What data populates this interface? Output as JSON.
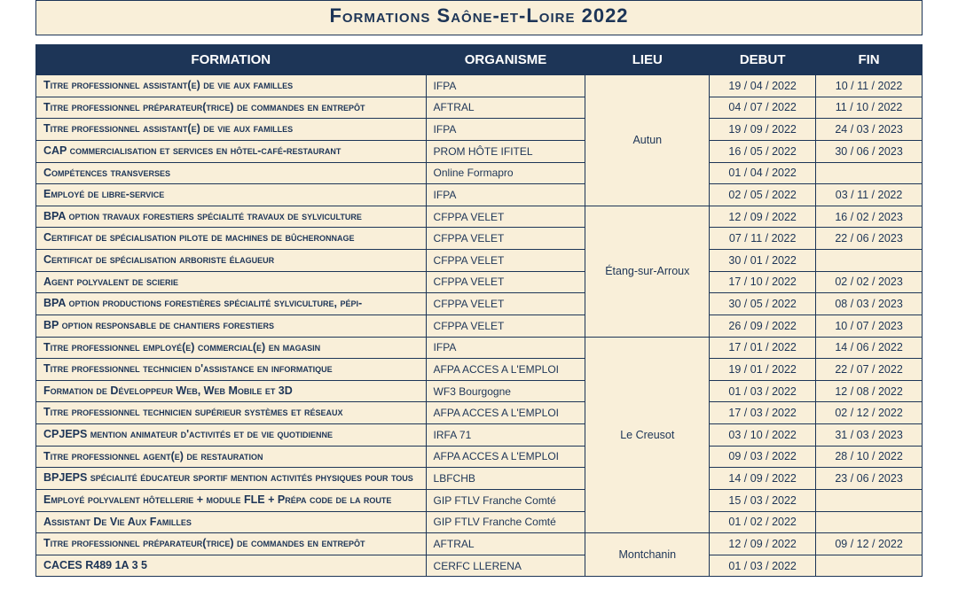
{
  "title": "Formations Saône-et-Loire 2022",
  "colors": {
    "header_bg": "#1d3557",
    "header_fg": "#ffffff",
    "cell_bg": "#f9efd9",
    "border": "#1d3557",
    "text": "#1d3557"
  },
  "columns": [
    {
      "key": "formation",
      "label": "FORMATION"
    },
    {
      "key": "organisme",
      "label": "ORGANISME"
    },
    {
      "key": "lieu",
      "label": "LIEU"
    },
    {
      "key": "debut",
      "label": "DEBUT"
    },
    {
      "key": "fin",
      "label": "FIN"
    }
  ],
  "groups": [
    {
      "lieu": "Autun",
      "rows": [
        {
          "formation": "Titre professionnel assistant(e) de vie aux familles",
          "organisme": "IFPA",
          "debut": "19 / 04 / 2022",
          "fin": "10 / 11 / 2022"
        },
        {
          "formation": "Titre professionnel préparateur(trice) de commandes en entrepôt",
          "organisme": "AFTRAL",
          "debut": "04 / 07 / 2022",
          "fin": "11 / 10 / 2022"
        },
        {
          "formation": "Titre professionnel assistant(e) de vie aux familles",
          "organisme": "IFPA",
          "debut": "19 / 09 / 2022",
          "fin": "24 / 03 / 2023"
        },
        {
          "formation": "CAP commercialisation et services en hôtel-café-restaurant",
          "organisme": "PROM HÔTE IFITEL",
          "debut": "16 / 05 / 2022",
          "fin": "30 / 06 / 2023"
        },
        {
          "formation": "Compétences transverses",
          "organisme": "Online Formapro",
          "debut": "01 / 04 / 2022",
          "fin": ""
        },
        {
          "formation": "Employé de libre-service",
          "organisme": "IFPA",
          "debut": "02 / 05 / 2022",
          "fin": "03 / 11 / 2022"
        }
      ]
    },
    {
      "lieu": "Étang-sur-Arroux",
      "rows": [
        {
          "formation": "BPA option travaux forestiers spécialité travaux de sylviculture",
          "organisme": "CFPPA VELET",
          "debut": "12 / 09 / 2022",
          "fin": "16 / 02 / 2023"
        },
        {
          "formation": "Certificat de spécialisation pilote de machines de bûcheronnage",
          "organisme": "CFPPA VELET",
          "debut": "07 / 11 / 2022",
          "fin": "22 / 06 / 2023"
        },
        {
          "formation": "Certificat de spécialisation arboriste élagueur",
          "organisme": "CFPPA VELET",
          "debut": "30 / 01 / 2022",
          "fin": ""
        },
        {
          "formation": "Agent polyvalent de scierie",
          "organisme": "CFPPA VELET",
          "debut": "17 / 10 / 2022",
          "fin": "02 / 02 / 2023"
        },
        {
          "formation": "BPA option productions forestières spécialité sylviculture, pépi-",
          "organisme": "CFPPA VELET",
          "debut": "30 / 05 / 2022",
          "fin": "08 / 03 / 2023"
        },
        {
          "formation": "BP option responsable de chantiers forestiers",
          "organisme": "CFPPA VELET",
          "debut": "26 / 09 / 2022",
          "fin": "10 / 07 / 2023"
        }
      ]
    },
    {
      "lieu": "Le Creusot",
      "rows": [
        {
          "formation": "Titre professionnel employé(e) commercial(e) en magasin",
          "organisme": "IFPA",
          "debut": "17 / 01 / 2022",
          "fin": "14 / 06 / 2022"
        },
        {
          "formation": "Titre professionnel technicien d'assistance en informatique",
          "organisme": "AFPA ACCES A L'EMPLOI",
          "debut": "19 / 01 / 2022",
          "fin": "22 / 07 / 2022"
        },
        {
          "formation": "Formation de Développeur Web, Web Mobile et 3D",
          "organisme": "WF3 Bourgogne",
          "debut": "01 / 03 / 2022",
          "fin": "12 / 08 / 2022"
        },
        {
          "formation": "Titre professionnel technicien supérieur systèmes et réseaux",
          "organisme": "AFPA ACCES A L'EMPLOI",
          "debut": "17 / 03 / 2022",
          "fin": "02 / 12 / 2022"
        },
        {
          "formation": "CPJEPS mention animateur d'activités et de vie quotidienne",
          "organisme": "IRFA 71",
          "debut": "03 / 10 / 2022",
          "fin": "31 / 03 / 2023"
        },
        {
          "formation": "Titre professionnel agent(e) de restauration",
          "organisme": "AFPA ACCES A L'EMPLOI",
          "debut": "09 / 03 / 2022",
          "fin": "28 / 10 / 2022"
        },
        {
          "formation": "BPJEPS spécialité éducateur sportif mention activités physiques pour tous",
          "organisme": "LBFCHB",
          "debut": "14 / 09 / 2022",
          "fin": "23 / 06 / 2023"
        },
        {
          "formation": "Employé polyvalent hôtellerie + module FLE + Prépa code de la route",
          "organisme": "GIP FTLV Franche Comté",
          "debut": "15 / 03 / 2022",
          "fin": ""
        },
        {
          "formation": "Assistant De Vie Aux Familles",
          "organisme": "GIP FTLV Franche Comté",
          "debut": "01 / 02 / 2022",
          "fin": ""
        }
      ]
    },
    {
      "lieu": "Montchanin",
      "rows": [
        {
          "formation": "Titre professionnel préparateur(trice) de commandes en entrepôt",
          "organisme": "AFTRAL",
          "debut": "12 / 09 / 2022",
          "fin": "09 / 12 / 2022"
        },
        {
          "formation": "CACES R489 1A 3 5",
          "organisme": "CERFC LLERENA",
          "debut": "01 / 03 / 2022",
          "fin": ""
        }
      ]
    }
  ]
}
